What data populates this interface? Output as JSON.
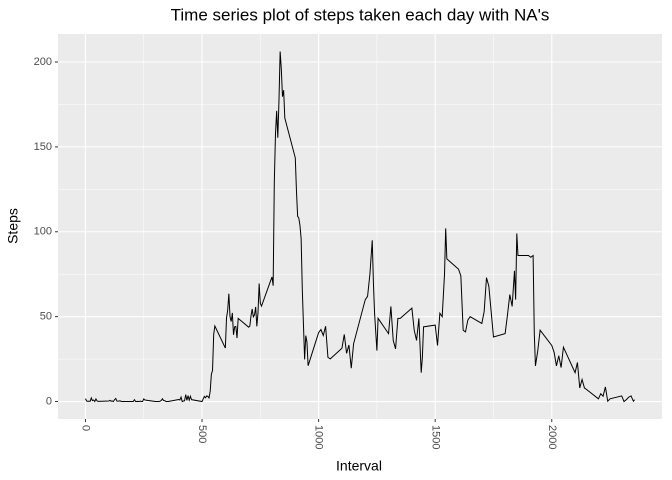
{
  "chart_data": {
    "type": "line",
    "title": "Time series plot of steps taken each day with NA's",
    "x_label": "Interval",
    "y_label": "Steps",
    "x": [
      0,
      5,
      10,
      15,
      20,
      25,
      30,
      35,
      40,
      45,
      50,
      55,
      100,
      105,
      110,
      115,
      120,
      125,
      130,
      135,
      140,
      145,
      150,
      155,
      200,
      205,
      210,
      215,
      220,
      225,
      230,
      235,
      240,
      245,
      250,
      255,
      300,
      305,
      310,
      315,
      320,
      325,
      330,
      335,
      340,
      345,
      350,
      355,
      400,
      405,
      410,
      415,
      420,
      425,
      430,
      435,
      440,
      445,
      450,
      455,
      500,
      505,
      510,
      515,
      520,
      525,
      530,
      535,
      540,
      545,
      550,
      555,
      600,
      605,
      610,
      615,
      620,
      625,
      630,
      635,
      640,
      645,
      650,
      655,
      700,
      705,
      710,
      715,
      720,
      725,
      730,
      735,
      740,
      745,
      750,
      755,
      800,
      805,
      810,
      815,
      820,
      825,
      830,
      835,
      840,
      845,
      850,
      855,
      900,
      905,
      910,
      915,
      920,
      925,
      930,
      935,
      940,
      945,
      950,
      955,
      1000,
      1010,
      1020,
      1030,
      1040,
      1050,
      1100,
      1110,
      1120,
      1130,
      1140,
      1150,
      1200,
      1210,
      1220,
      1230,
      1235,
      1240,
      1250,
      1255,
      1300,
      1310,
      1320,
      1330,
      1340,
      1350,
      1400,
      1410,
      1420,
      1430,
      1440,
      1445,
      1450,
      1500,
      1510,
      1520,
      1530,
      1540,
      1545,
      1550,
      1600,
      1610,
      1620,
      1630,
      1640,
      1650,
      1700,
      1710,
      1720,
      1730,
      1740,
      1750,
      1800,
      1810,
      1820,
      1830,
      1840,
      1845,
      1850,
      1855,
      1900,
      1910,
      1920,
      1925,
      1930,
      1940,
      1950,
      2000,
      2010,
      2020,
      2030,
      2040,
      2050,
      2100,
      2110,
      2120,
      2130,
      2140,
      2150,
      2200,
      2210,
      2220,
      2230,
      2240,
      2250,
      2300,
      2310,
      2320,
      2330,
      2340,
      2350,
      2355
    ],
    "series": [
      {
        "name": "Steps",
        "color": "#000000",
        "values": [
          1.7,
          0.3,
          0.1,
          0.2,
          0.1,
          2.1,
          0.5,
          0.9,
          0,
          1.5,
          0.3,
          0.1,
          0.3,
          0.7,
          0.2,
          0.3,
          0,
          1.1,
          1.8,
          0.2,
          0.2,
          0.4,
          0.3,
          0,
          0,
          0,
          1.1,
          0,
          0,
          0.1,
          0,
          0.2,
          0,
          0,
          1.5,
          0.9,
          0,
          0,
          0,
          0,
          0.2,
          0.6,
          1.6,
          0.6,
          0.5,
          0.1,
          0,
          0,
          1.2,
          0.9,
          2.6,
          0,
          0.3,
          0.4,
          4.1,
          0.7,
          3.5,
          0.8,
          3.1,
          1.1,
          0,
          1.6,
          3,
          2.2,
          3.3,
          3,
          2.1,
          6,
          16,
          18.3,
          39.5,
          44.5,
          31.5,
          49.3,
          53.8,
          63.5,
          50,
          47.1,
          52.2,
          39.3,
          44,
          44.2,
          37.4,
          49,
          43.8,
          44.4,
          50.5,
          54.5,
          49.9,
          51,
          55.7,
          44.3,
          52.3,
          69.5,
          57.8,
          56.2,
          73.4,
          68.2,
          129.4,
          157.5,
          171.2,
          155.4,
          177.3,
          206.2,
          195.9,
          179.6,
          183.4,
          167,
          143.5,
          124,
          109.1,
          108.1,
          103.7,
          96,
          66.2,
          45.2,
          24.8,
          38.8,
          35,
          21.1,
          40.6,
          42.4,
          38.9,
          44.3,
          26,
          25.1,
          31.4,
          39.5,
          28.4,
          33.3,
          19.6,
          34,
          60,
          62,
          75,
          95,
          70,
          52,
          30,
          49,
          40,
          56,
          36,
          31,
          49,
          49,
          55,
          42,
          36,
          49,
          17,
          26,
          44,
          45,
          33,
          52,
          50,
          75,
          102,
          84,
          78,
          74,
          42,
          41,
          48,
          50,
          46,
          53,
          73,
          68,
          53,
          38,
          40,
          51,
          63,
          56,
          77,
          60,
          99,
          86,
          86,
          85,
          86,
          40,
          21,
          30,
          42,
          33,
          29,
          21,
          27,
          20,
          32,
          17,
          23,
          8,
          13,
          8,
          7,
          1.6,
          4.6,
          3.1,
          8.6,
          0.2,
          1.6,
          3.3,
          0,
          1.1,
          2.6,
          3.3,
          0.2,
          1.1
        ]
      }
    ],
    "xlim": [
      -117.75,
      2472.75
    ],
    "xticks": [
      0,
      500,
      1000,
      1500,
      2000
    ],
    "ylim": [
      -10.3,
      216.5
    ],
    "yticks": [
      0,
      50,
      100,
      150,
      200
    ],
    "grid": true
  }
}
